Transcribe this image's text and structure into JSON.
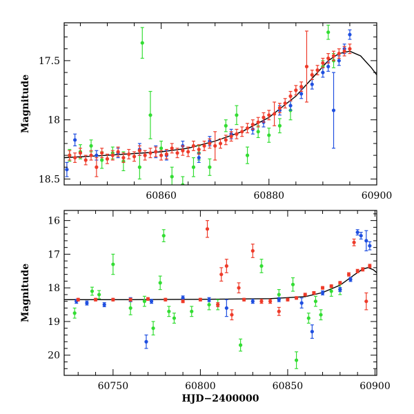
{
  "colors": {
    "green": "#33dd33",
    "blue": "#1f4fe0",
    "red": "#ee3b2a",
    "model": "#000000"
  },
  "chart_data": [
    {
      "type": "scatter",
      "ylabel": "Magnitude",
      "xlabel": "",
      "xlim": [
        60842,
        60900
      ],
      "ylim": [
        18.55,
        17.18
      ],
      "y_inverted": true,
      "xticks": [
        60860,
        60880,
        60900
      ],
      "yticks": [
        17.5,
        18,
        18.5
      ],
      "ytick_labels": [
        "17.5",
        "18",
        "18.5"
      ],
      "model_curve": {
        "x": [
          60842,
          60850,
          60860,
          60865,
          60870,
          60875,
          60880,
          60885,
          60888,
          60891,
          60893,
          60895,
          60897,
          60899,
          60900
        ],
        "y": [
          18.32,
          18.3,
          18.27,
          18.24,
          18.18,
          18.1,
          17.98,
          17.8,
          17.65,
          17.5,
          17.44,
          17.42,
          17.46,
          17.56,
          17.62
        ]
      },
      "series": [
        {
          "color_key": "green",
          "x": [
            60843,
            60845,
            60847,
            60849,
            60851,
            60853,
            60856,
            60856.5,
            60858,
            60860,
            60862,
            60864,
            60866,
            60867,
            60869,
            60872,
            60874,
            60876,
            60878,
            60880,
            60882,
            60884,
            60890,
            60891,
            60892
          ],
          "y": [
            18.3,
            18.27,
            18.22,
            18.34,
            18.28,
            18.35,
            18.4,
            17.35,
            17.96,
            18.24,
            18.48,
            18.55,
            18.4,
            18.28,
            18.4,
            18.05,
            17.96,
            18.3,
            18.1,
            18.13,
            18.05,
            17.92,
            17.55,
            17.26,
            17.5
          ],
          "err": [
            0.05,
            0.06,
            0.05,
            0.07,
            0.05,
            0.08,
            0.1,
            0.13,
            0.2,
            0.06,
            0.08,
            0.07,
            0.08,
            0.06,
            0.07,
            0.05,
            0.08,
            0.07,
            0.05,
            0.06,
            0.06,
            0.08,
            0.05,
            0.06,
            0.06
          ]
        },
        {
          "color_key": "blue",
          "x": [
            60842.5,
            60844,
            60848,
            60852,
            60856,
            60859,
            60861,
            60864,
            60867,
            60869,
            60873,
            60877,
            60879,
            60882,
            60884,
            60886,
            60888,
            60890,
            60891,
            60892,
            60893,
            60894,
            60895
          ],
          "y": [
            18.42,
            18.17,
            18.3,
            18.28,
            18.25,
            18.27,
            18.3,
            18.22,
            18.32,
            18.18,
            18.12,
            18.08,
            18.02,
            17.92,
            17.88,
            17.78,
            17.7,
            17.6,
            17.55,
            17.92,
            17.5,
            17.4,
            17.28
          ],
          "err": [
            0.06,
            0.05,
            0.04,
            0.04,
            0.05,
            0.05,
            0.04,
            0.04,
            0.04,
            0.04,
            0.04,
            0.04,
            0.04,
            0.04,
            0.04,
            0.04,
            0.04,
            0.04,
            0.04,
            0.32,
            0.04,
            0.04,
            0.04
          ]
        },
        {
          "color_key": "red",
          "x": [
            60843,
            60844,
            60845,
            60846,
            60847,
            60848,
            60849,
            60850,
            60851,
            60852,
            60853,
            60854,
            60855,
            60856,
            60857,
            60858,
            60859,
            60860,
            60861,
            60862,
            60863,
            60864,
            60865,
            60866,
            60867,
            60868,
            60869,
            60870,
            60871,
            60872,
            60873,
            60874,
            60875,
            60876,
            60877,
            60878,
            60879,
            60880,
            60881,
            60882,
            60883,
            60884,
            60885,
            60886,
            60887,
            60888,
            60889,
            60890,
            60891,
            60892,
            60893,
            60894,
            60895
          ],
          "y": [
            18.3,
            18.32,
            18.28,
            18.34,
            18.3,
            18.4,
            18.28,
            18.33,
            18.3,
            18.27,
            18.32,
            18.29,
            18.31,
            18.26,
            18.3,
            18.28,
            18.27,
            18.3,
            18.29,
            18.24,
            18.28,
            18.26,
            18.27,
            18.22,
            18.25,
            18.22,
            18.2,
            18.22,
            18.2,
            18.17,
            18.14,
            18.12,
            18.1,
            18.07,
            18.04,
            18.02,
            17.98,
            17.96,
            17.95,
            17.9,
            17.86,
            17.8,
            17.75,
            17.72,
            17.55,
            17.62,
            17.58,
            17.52,
            17.48,
            17.46,
            17.44,
            17.42,
            17.4
          ],
          "err": [
            0.04,
            0.04,
            0.04,
            0.04,
            0.04,
            0.08,
            0.04,
            0.04,
            0.04,
            0.04,
            0.04,
            0.04,
            0.04,
            0.04,
            0.04,
            0.04,
            0.04,
            0.04,
            0.04,
            0.04,
            0.04,
            0.04,
            0.04,
            0.04,
            0.04,
            0.04,
            0.04,
            0.12,
            0.04,
            0.04,
            0.04,
            0.04,
            0.04,
            0.04,
            0.04,
            0.04,
            0.04,
            0.04,
            0.1,
            0.04,
            0.04,
            0.04,
            0.04,
            0.04,
            0.3,
            0.04,
            0.04,
            0.04,
            0.04,
            0.04,
            0.04,
            0.04,
            0.04
          ]
        }
      ]
    },
    {
      "type": "scatter",
      "ylabel": "Magnitude",
      "xlabel": "HJD−2400000",
      "xlim": [
        60722,
        60901
      ],
      "ylim": [
        20.6,
        15.7
      ],
      "y_inverted": true,
      "xticks": [
        60750,
        60800,
        60850,
        60900
      ],
      "yticks": [
        16,
        17,
        18,
        19,
        20
      ],
      "ytick_labels": [
        "16",
        "17",
        "18",
        "19",
        "20"
      ],
      "model_curve": {
        "x": [
          60722,
          60760,
          60800,
          60840,
          60860,
          60870,
          60880,
          60888,
          60893,
          60896,
          60899,
          60901
        ],
        "y": [
          18.35,
          18.35,
          18.34,
          18.32,
          18.26,
          18.14,
          17.92,
          17.62,
          17.44,
          17.4,
          17.46,
          17.55
        ]
      },
      "series": [
        {
          "color_key": "green",
          "x": [
            60728,
            60738,
            60742,
            60750,
            60760,
            60768,
            60773,
            60777,
            60779,
            60782,
            60785,
            60795,
            60805,
            60810,
            60823,
            60835,
            60845,
            60853,
            60855,
            60862,
            60866,
            60869,
            60875,
            60880
          ],
          "y": [
            18.75,
            18.1,
            18.2,
            17.3,
            18.6,
            18.4,
            19.2,
            17.85,
            16.45,
            18.7,
            18.9,
            18.7,
            18.5,
            18.5,
            19.7,
            17.35,
            18.2,
            17.9,
            20.15,
            18.9,
            18.4,
            18.8,
            18.1,
            18.05
          ],
          "err": [
            0.15,
            0.12,
            0.12,
            0.3,
            0.2,
            0.15,
            0.2,
            0.2,
            0.18,
            0.15,
            0.15,
            0.15,
            0.15,
            0.15,
            0.18,
            0.2,
            0.15,
            0.2,
            0.25,
            0.15,
            0.15,
            0.15,
            0.15,
            0.15
          ]
        },
        {
          "color_key": "blue",
          "x": [
            60729,
            60735,
            60745,
            60760,
            60769,
            60772,
            60790,
            60805,
            60815,
            60830,
            60845,
            60858,
            60864,
            60870,
            60880,
            60886,
            60890,
            60892,
            60895,
            60897
          ],
          "y": [
            18.4,
            18.45,
            18.5,
            18.35,
            19.6,
            18.4,
            18.3,
            18.35,
            18.6,
            18.4,
            18.35,
            18.45,
            19.3,
            18.15,
            18.05,
            17.75,
            16.35,
            16.45,
            16.6,
            16.75
          ],
          "err": [
            0.06,
            0.06,
            0.06,
            0.06,
            0.2,
            0.06,
            0.06,
            0.06,
            0.25,
            0.06,
            0.06,
            0.15,
            0.2,
            0.06,
            0.06,
            0.06,
            0.08,
            0.1,
            0.3,
            0.12
          ]
        },
        {
          "color_key": "red",
          "x": [
            60730,
            60740,
            60750,
            60760,
            60770,
            60780,
            60790,
            60800,
            60804,
            60810,
            60812,
            60815,
            60818,
            60822,
            60825,
            60830,
            60835,
            60840,
            60845,
            60850,
            60855,
            60860,
            60865,
            60870,
            60875,
            60880,
            60885,
            60888,
            60890,
            60893,
            60895,
            60897
          ],
          "y": [
            18.35,
            18.35,
            18.35,
            18.35,
            18.33,
            18.35,
            18.4,
            18.35,
            16.25,
            18.5,
            17.6,
            17.35,
            18.8,
            18.0,
            18.35,
            16.9,
            18.4,
            18.4,
            18.7,
            18.35,
            18.3,
            18.2,
            18.15,
            18.0,
            17.95,
            17.85,
            17.6,
            16.65,
            17.5,
            17.45,
            18.4,
            17.35
          ],
          "err": [
            0.04,
            0.04,
            0.04,
            0.04,
            0.04,
            0.04,
            0.04,
            0.04,
            0.25,
            0.06,
            0.2,
            0.2,
            0.15,
            0.15,
            0.04,
            0.2,
            0.06,
            0.06,
            0.12,
            0.04,
            0.04,
            0.04,
            0.04,
            0.04,
            0.04,
            0.04,
            0.05,
            0.1,
            0.05,
            0.05,
            0.25,
            0.05
          ]
        }
      ]
    }
  ]
}
